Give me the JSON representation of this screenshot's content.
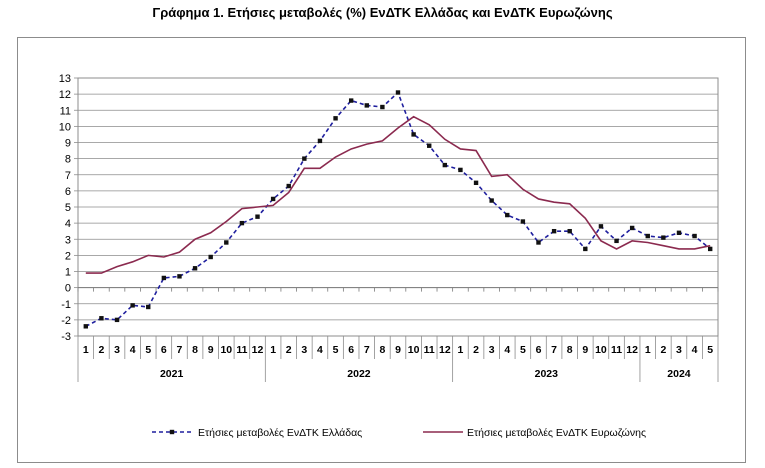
{
  "chart_data": {
    "type": "line",
    "title": "Γράφημα 1. Ετήσιες μεταβολές (%) ΕνΔΤΚ Ελλάδας και ΕνΔΤΚ Ευρωζώνης",
    "xlabel": "",
    "ylabel": "",
    "ylim": [
      -3,
      13
    ],
    "yticks": [
      "-3",
      "-2",
      "-1",
      "0",
      "1",
      "2",
      "3",
      "4",
      "5",
      "6",
      "7",
      "8",
      "9",
      "10",
      "11",
      "12",
      "13"
    ],
    "month_labels": [
      "1",
      "2",
      "3",
      "4",
      "5",
      "6",
      "7",
      "8",
      "9",
      "10",
      "11",
      "12",
      "1",
      "2",
      "3",
      "4",
      "5",
      "6",
      "7",
      "8",
      "9",
      "10",
      "11",
      "12",
      "1",
      "2",
      "3",
      "4",
      "5",
      "6",
      "7",
      "8",
      "9",
      "10",
      "11",
      "12",
      "1",
      "2",
      "3",
      "4",
      "5"
    ],
    "years": [
      {
        "label": "2021",
        "months": 12
      },
      {
        "label": "2022",
        "months": 12
      },
      {
        "label": "2023",
        "months": 12
      },
      {
        "label": "2024",
        "months": 5
      }
    ],
    "grid": true,
    "legend_position": "bottom",
    "series": [
      {
        "name": "Ετήσιες μεταβολές ΕνΔΤΚ Ελλάδας",
        "color": "#1f1f9e",
        "style": "dashed-markers",
        "values": [
          -2.4,
          -1.9,
          -2.0,
          -1.1,
          -1.2,
          0.6,
          0.7,
          1.2,
          1.9,
          2.8,
          4.0,
          4.4,
          5.5,
          6.3,
          8.0,
          9.1,
          10.5,
          11.6,
          11.3,
          11.2,
          12.1,
          9.5,
          8.8,
          7.6,
          7.3,
          6.5,
          5.4,
          4.5,
          4.1,
          2.8,
          3.5,
          3.5,
          2.4,
          3.8,
          2.9,
          3.7,
          3.2,
          3.1,
          3.4,
          3.2,
          2.4
        ]
      },
      {
        "name": "Ετήσιες μεταβολές ΕνΔΤΚ Ευρωζώνης",
        "color": "#8b2a4f",
        "style": "solid",
        "values": [
          0.9,
          0.9,
          1.3,
          1.6,
          2.0,
          1.9,
          2.2,
          3.0,
          3.4,
          4.1,
          4.9,
          5.0,
          5.1,
          5.9,
          7.4,
          7.4,
          8.1,
          8.6,
          8.9,
          9.1,
          9.9,
          10.6,
          10.1,
          9.2,
          8.6,
          8.5,
          6.9,
          7.0,
          6.1,
          5.5,
          5.3,
          5.2,
          4.3,
          2.9,
          2.4,
          2.9,
          2.8,
          2.6,
          2.4,
          2.4,
          2.6
        ]
      }
    ]
  }
}
